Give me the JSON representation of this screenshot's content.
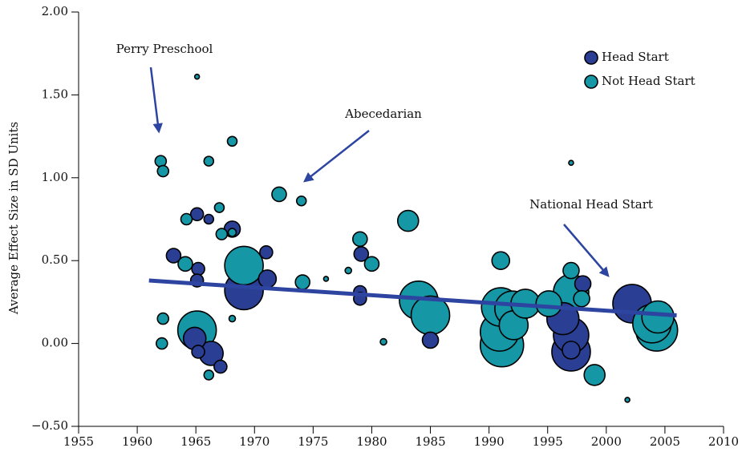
{
  "chart_data": {
    "type": "bubble",
    "ylabel": "Average Effect Size in SD Units",
    "xlim": [
      1955,
      2010
    ],
    "xticks": [
      1955,
      1960,
      1965,
      1970,
      1975,
      1980,
      1985,
      1990,
      1995,
      2000,
      2005,
      2010
    ],
    "ylim": [
      -0.5,
      2
    ],
    "yticks": [
      {
        "value": 2,
        "label": "2.00"
      },
      {
        "value": 1.5,
        "label": "1.50"
      },
      {
        "value": 1,
        "label": "1.00"
      },
      {
        "value": 0.5,
        "label": "0.50"
      },
      {
        "value": 0,
        "label": "0.00"
      },
      {
        "value": -0.5,
        "label": "−0.50"
      }
    ],
    "legend_position": "upper right",
    "series": [
      {
        "name": "Head Start",
        "color": "#2a3f93",
        "x": [
          1963.1,
          1965.1,
          1966.1,
          1968.1,
          1965.2,
          1965.1,
          1964.9,
          1966.3,
          1965.2,
          1967.1,
          1969.1,
          1971.1,
          1971.0,
          1979.1,
          1979.0,
          1979.0,
          1985.0,
          1996.3,
          1997.0,
          1997.0,
          1997.0,
          1998.0,
          2002.2
        ],
        "y": [
          0.53,
          0.78,
          0.75,
          0.69,
          0.45,
          0.38,
          0.03,
          -0.06,
          -0.05,
          -0.14,
          0.32,
          0.39,
          0.55,
          0.54,
          0.31,
          0.27,
          0.02,
          0.15,
          -0.05,
          0.05,
          -0.04,
          0.36,
          0.24
        ],
        "sizes": [
          9,
          8,
          6,
          10,
          8,
          8,
          14,
          15,
          8,
          8,
          24,
          11,
          8,
          9,
          8,
          8,
          10,
          20,
          24,
          22,
          11,
          10,
          24
        ]
      },
      {
        "name": "Not Head Start",
        "color": "#1597a5",
        "x": [
          1962.0,
          1962.2,
          1965.1,
          1966.1,
          1968.1,
          1964.2,
          1967.0,
          1967.2,
          1968.1,
          1964.1,
          1962.2,
          1962.1,
          1965.1,
          1966.1,
          1968.1,
          1969.1,
          1972.1,
          1974.0,
          1974.1,
          1976.1,
          1978.0,
          1979.0,
          1980.0,
          1981.0,
          1983.1,
          1984.0,
          1985.0,
          1991.0,
          1991.1,
          1990.9,
          1991.0,
          1992.0,
          1992.1,
          1993.1,
          1995.1,
          1997.0,
          1997.0,
          1997.9,
          1997.0,
          1999.0,
          2001.8,
          2004.3,
          2003.9,
          2004.4
        ],
        "y": [
          1.1,
          1.04,
          1.61,
          1.1,
          1.22,
          0.75,
          0.82,
          0.66,
          0.67,
          0.48,
          0.15,
          0.0,
          0.08,
          -0.19,
          0.15,
          0.47,
          0.9,
          0.86,
          0.37,
          0.39,
          0.44,
          0.63,
          0.48,
          0.01,
          0.74,
          0.26,
          0.17,
          0.5,
          -0.01,
          0.07,
          0.22,
          0.21,
          0.11,
          0.24,
          0.24,
          0.44,
          0.31,
          0.27,
          1.09,
          -0.19,
          -0.34,
          0.08,
          0.12,
          0.16
        ],
        "sizes": [
          7,
          7,
          3,
          6,
          6,
          7,
          6,
          7,
          5,
          9,
          7,
          7,
          24,
          6,
          4,
          24,
          9,
          6,
          9,
          3,
          4,
          9,
          9,
          4,
          13,
          24,
          24,
          11,
          27,
          24,
          24,
          22,
          18,
          18,
          16,
          10,
          22,
          10,
          3,
          13,
          3,
          26,
          24,
          20
        ]
      }
    ],
    "trend_line": {
      "color": "#2d45a0",
      "x": [
        1961,
        2006
      ],
      "y": [
        0.38,
        0.17
      ]
    },
    "annotations": [
      "Perry Preschool",
      "Abecedarian",
      "National Head Start"
    ]
  }
}
